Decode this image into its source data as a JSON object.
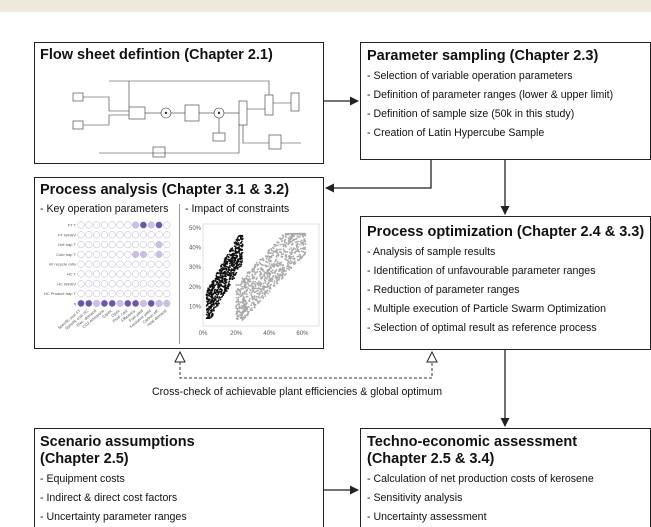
{
  "flowsheet": {
    "title": "Flow sheet defintion (Chapter 2.1)"
  },
  "sampling": {
    "title": "Parameter sampling (Chapter 2.3)",
    "items": [
      "- Selection of variable operation parameters",
      "- Definition of parameter ranges (lower & upper limit)",
      "- Definition of sample size (50k in this study)",
      "- Creation of Latin Hypercube Sample"
    ]
  },
  "analysis": {
    "title": "Process analysis (Chapter 3.1 & 3.2)",
    "left_label": "- Key operation parameters",
    "right_label": "- Impact of constraints",
    "bubble_rows": [
      "FT T",
      "FT WHSV",
      "Hot trap T",
      "Cold trap T",
      "Int recycle ratio",
      "HC T",
      "HC WHSV",
      "HC Product trap T",
      "η"
    ],
    "bubble_cols": [
      "Specific cost FT",
      "Specific cost HC",
      "Elec. demand",
      "CO2 emissions",
      "Capex",
      "Opex",
      "Prod. cost",
      "Efficiency",
      "Fuel yield",
      "Kerosene yield",
      "Carbon eff.",
      "Heat demand"
    ],
    "scatter_ticks_y": [
      "50%",
      "40%",
      "30%",
      "20%",
      "10%"
    ],
    "scatter_ticks_x": [
      "0%",
      "20%",
      "40%",
      "60%"
    ]
  },
  "optimization": {
    "title": "Process optimization (Chapter 2.4 & 3.3)",
    "items": [
      "- Analysis of sample results",
      "- Identification of unfavourable parameter ranges",
      "- Reduction of parameter ranges",
      "- Multiple execution of Particle Swarm Optimization",
      "- Selection of optimal result as reference process"
    ]
  },
  "crosscheck": {
    "caption": "Cross-check of achievable plant efficiencies & global optimum"
  },
  "scenario": {
    "title_line1": "Scenario assumptions",
    "title_line2": "(Chapter 2.5)",
    "items": [
      "- Equipment costs",
      "- Indirect & direct cost factors",
      "- Uncertainty parameter ranges"
    ]
  },
  "techno": {
    "title_line1": "Techno-economic assessment",
    "title_line2": "(Chapter 2.5 & 3.4)",
    "items": [
      "- Calculation of net production costs of kerosene",
      "- Sensitivity analysis",
      "- Uncertainty assessment"
    ]
  },
  "colors": {
    "border": "#222222",
    "bubble_dark": "#6a55b0",
    "bubble_light": "#c9c0e6",
    "scatter_dark": "#111111",
    "scatter_light": "#a8a8a8",
    "topbar": "#ede9dc"
  }
}
